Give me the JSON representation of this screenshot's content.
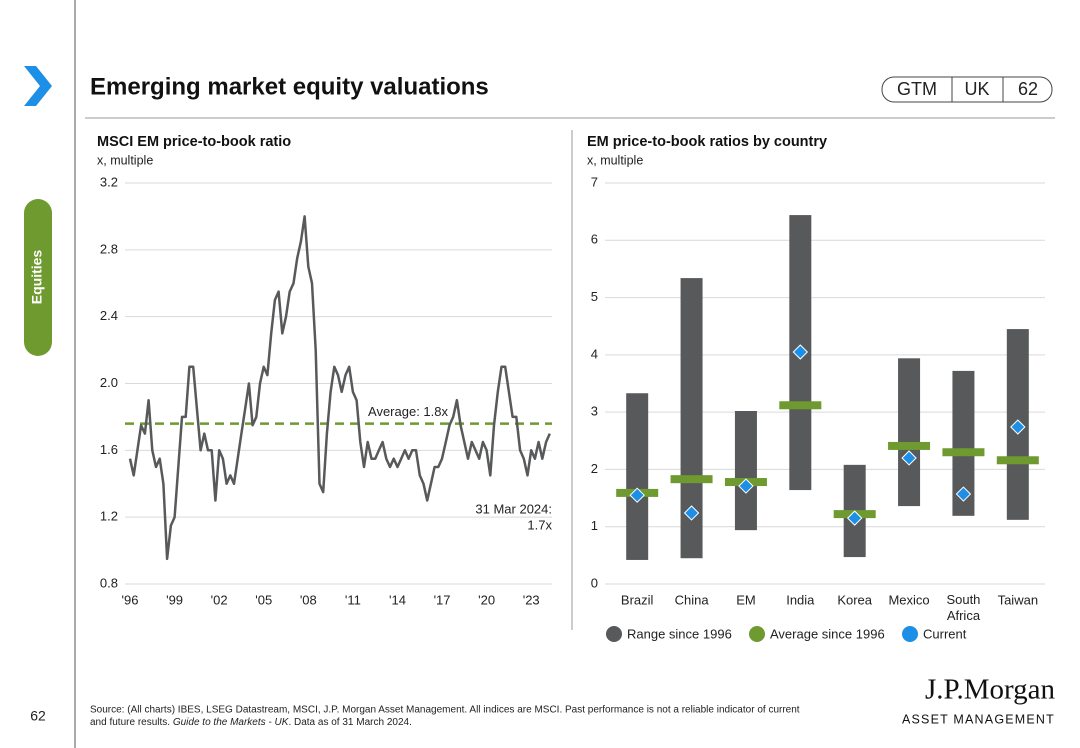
{
  "header": {
    "title": "Emerging market equity valuations",
    "badge": [
      "GTM",
      "UK",
      "62"
    ],
    "section": "Equities",
    "page_number": "62",
    "source_line1": "Source: (All charts) IBES, LSEG Datastream, MSCI, J.P. Morgan Asset Management. All indices are MSCI. Past performance is not a reliable indicator of current",
    "source_line2": [
      "and future results. ",
      "Guide to the Markets - UK",
      ". Data as of 31 March 2024."
    ],
    "logo": "J.P.Morgan",
    "logo_tagline": "ASSET MANAGEMENT"
  },
  "chart_data": [
    {
      "type": "line",
      "title": "MSCI EM price-to-book ratio",
      "subtitle": "x, multiple",
      "color": "#58595b",
      "x": [
        1996,
        1996.25,
        1996.5,
        1996.75,
        1997,
        1997.25,
        1997.5,
        1997.75,
        1998,
        1998.25,
        1998.5,
        1998.75,
        1999,
        1999.25,
        1999.5,
        1999.75,
        2000,
        2000.25,
        2000.5,
        2000.75,
        2001,
        2001.25,
        2001.5,
        2001.75,
        2002,
        2002.25,
        2002.5,
        2002.75,
        2003,
        2003.25,
        2003.5,
        2003.75,
        2004,
        2004.25,
        2004.5,
        2004.75,
        2005,
        2005.25,
        2005.5,
        2005.75,
        2006,
        2006.25,
        2006.5,
        2006.75,
        2007,
        2007.25,
        2007.5,
        2007.75,
        2008,
        2008.25,
        2008.5,
        2008.75,
        2009,
        2009.25,
        2009.5,
        2009.75,
        2010,
        2010.25,
        2010.5,
        2010.75,
        2011,
        2011.25,
        2011.5,
        2011.75,
        2012,
        2012.25,
        2012.5,
        2012.75,
        2013,
        2013.25,
        2013.5,
        2013.75,
        2014,
        2014.25,
        2014.5,
        2014.75,
        2015,
        2015.25,
        2015.5,
        2015.75,
        2016,
        2016.25,
        2016.5,
        2016.75,
        2017,
        2017.25,
        2017.5,
        2017.75,
        2018,
        2018.25,
        2018.5,
        2018.75,
        2019,
        2019.25,
        2019.5,
        2019.75,
        2020,
        2020.25,
        2020.5,
        2020.75,
        2021,
        2021.25,
        2021.5,
        2021.75,
        2022,
        2022.25,
        2022.5,
        2022.75,
        2023,
        2023.25,
        2023.5,
        2023.75,
        2024,
        2024.25
      ],
      "values": [
        1.55,
        1.45,
        1.6,
        1.75,
        1.7,
        1.9,
        1.6,
        1.5,
        1.55,
        1.4,
        0.95,
        1.15,
        1.2,
        1.5,
        1.8,
        1.8,
        2.1,
        2.1,
        1.85,
        1.6,
        1.7,
        1.6,
        1.6,
        1.3,
        1.6,
        1.55,
        1.4,
        1.45,
        1.4,
        1.55,
        1.7,
        1.85,
        2.0,
        1.75,
        1.8,
        2.0,
        2.1,
        2.05,
        2.3,
        2.5,
        2.55,
        2.3,
        2.4,
        2.55,
        2.6,
        2.75,
        2.85,
        3.0,
        2.7,
        2.6,
        2.2,
        1.4,
        1.35,
        1.7,
        1.95,
        2.1,
        2.05,
        1.95,
        2.05,
        2.1,
        1.95,
        1.9,
        1.65,
        1.5,
        1.65,
        1.55,
        1.55,
        1.6,
        1.65,
        1.55,
        1.5,
        1.55,
        1.5,
        1.55,
        1.6,
        1.55,
        1.6,
        1.6,
        1.45,
        1.4,
        1.3,
        1.4,
        1.5,
        1.5,
        1.55,
        1.65,
        1.75,
        1.8,
        1.9,
        1.75,
        1.65,
        1.55,
        1.65,
        1.6,
        1.55,
        1.65,
        1.6,
        1.45,
        1.75,
        1.95,
        2.1,
        2.1,
        1.95,
        1.8,
        1.8,
        1.6,
        1.55,
        1.45,
        1.6,
        1.55,
        1.65,
        1.55,
        1.65,
        1.7
      ],
      "xlim": [
        1996,
        2024.4
      ],
      "xticks": [
        {
          "value": 1996,
          "label": "'96"
        },
        {
          "value": 1999,
          "label": "'99"
        },
        {
          "value": 2002,
          "label": "'02"
        },
        {
          "value": 2005,
          "label": "'05"
        },
        {
          "value": 2008,
          "label": "'08"
        },
        {
          "value": 2011,
          "label": "'11"
        },
        {
          "value": 2014,
          "label": "'14"
        },
        {
          "value": 2017,
          "label": "'17"
        },
        {
          "value": 2020,
          "label": "'20"
        },
        {
          "value": 2023,
          "label": "'23"
        }
      ],
      "ylim": [
        0.8,
        3.2
      ],
      "yticks": [
        0.8,
        1.2,
        1.6,
        {
          "value": 2,
          "label": "2.0"
        },
        2.4,
        2.8,
        3.2
      ],
      "grid": true,
      "average_line": {
        "value": 1.76,
        "label": "Average: 1.8x",
        "color": "#6e9a2f"
      },
      "annotation": [
        "31 Mar 2024:",
        "1.7x"
      ]
    },
    {
      "type": "range_bar",
      "title": "EM price-to-book ratios by country",
      "subtitle": "x, multiple",
      "categories": [
        "Brazil",
        "China",
        "EM",
        "India",
        "Korea",
        "Mexico",
        "South Africa",
        "Taiwan"
      ],
      "series": [
        {
          "name": "Range since 1996",
          "color": "#58595b",
          "low": [
            0.42,
            0.45,
            0.94,
            1.64,
            0.47,
            1.36,
            1.19,
            1.12
          ],
          "high": [
            3.33,
            5.34,
            3.02,
            6.44,
            2.08,
            3.94,
            3.72,
            4.45
          ]
        },
        {
          "name": "Average since 1996",
          "color": "#6e9a2f",
          "values": [
            1.59,
            1.83,
            1.78,
            3.12,
            1.22,
            2.41,
            2.3,
            2.16
          ]
        },
        {
          "name": "Current",
          "color": "#1e8fe6",
          "values": [
            1.55,
            1.24,
            1.71,
            4.05,
            1.15,
            2.2,
            1.57,
            2.74
          ]
        }
      ],
      "ylim": [
        0,
        7
      ],
      "yticks": [
        0,
        1,
        2,
        3,
        4,
        5,
        6,
        7
      ],
      "grid": true
    }
  ]
}
